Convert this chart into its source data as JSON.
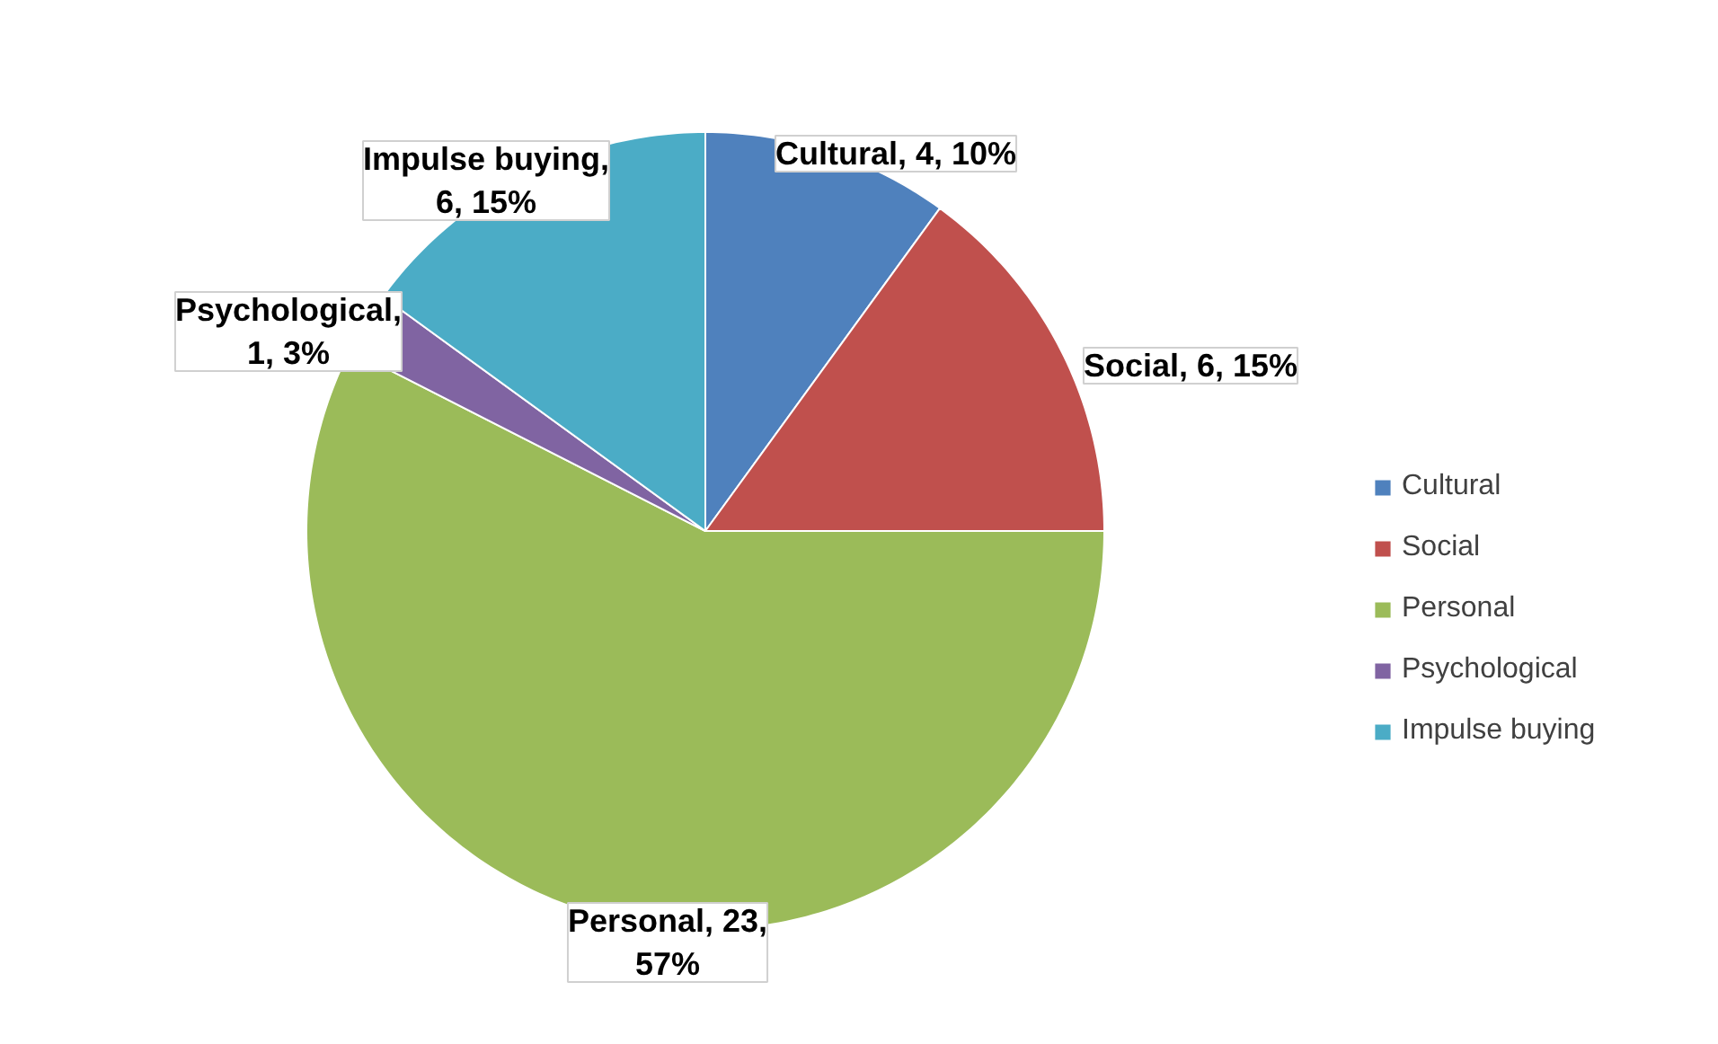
{
  "chart_data": {
    "type": "pie",
    "categories": [
      "Cultural",
      "Social",
      "Personal",
      "Psychological",
      "Impulse buying"
    ],
    "values": [
      4,
      6,
      23,
      1,
      6
    ],
    "colors": [
      "#4f81bd",
      "#c0504d",
      "#9bbb59",
      "#8064a2",
      "#4bacc6"
    ],
    "value_labels": [
      "Cultural, 4, 10%",
      "Social, 6, 15%",
      "Personal, 23, 57%",
      "Psychological, 1, 3%",
      "Impulse buying, 6, 15%"
    ],
    "legend": "right"
  }
}
